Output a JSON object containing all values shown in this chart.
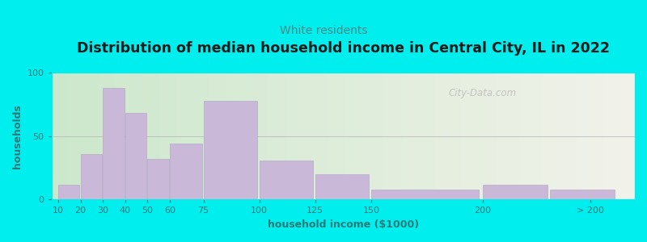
{
  "title": "Distribution of median household income in Central City, IL in 2022",
  "subtitle": "White residents",
  "xlabel": "household income ($1000)",
  "ylabel": "households",
  "background_outer": "#00EEEE",
  "bar_color": "#c9b8d8",
  "bar_edge_color": "#b0a0c8",
  "title_fontsize": 12.5,
  "title_color": "#1a1a1a",
  "subtitle_fontsize": 10,
  "subtitle_color": "#4a8a8a",
  "ylabel_color": "#2a7a7a",
  "xlabel_color": "#2a7a7a",
  "tick_color": "#2a7a7a",
  "watermark": "City-Data.com",
  "bar_lefts": [
    10,
    20,
    30,
    40,
    50,
    60,
    75,
    100,
    125,
    150,
    200,
    230
  ],
  "bar_widths": [
    10,
    10,
    10,
    10,
    10,
    15,
    25,
    25,
    25,
    50,
    30,
    30
  ],
  "bar_heights": [
    12,
    36,
    88,
    68,
    32,
    44,
    78,
    31,
    20,
    8,
    12,
    8
  ],
  "ylim": [
    0,
    100
  ],
  "yticks": [
    0,
    50,
    100
  ],
  "xlim": [
    7,
    268
  ],
  "xtick_positions": [
    10,
    20,
    30,
    40,
    50,
    60,
    75,
    100,
    125,
    150,
    200,
    248
  ],
  "xtick_labels": [
    "10",
    "20",
    "30",
    "40",
    "50",
    "60",
    "75",
    "100",
    "125",
    "150",
    "200",
    "> 200"
  ],
  "gradient_left": "#cce8cc",
  "gradient_right": "#f2f2ea"
}
